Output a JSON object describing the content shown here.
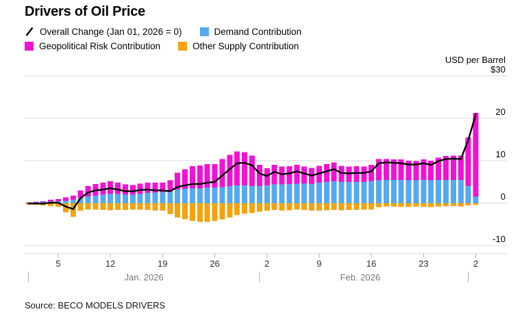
{
  "source": "Source: BECO MODELS DRIVERS",
  "legend": {
    "overall": "Overall Change (Jan 01, 2026 = 0)",
    "demand": "Demand Contribution",
    "geopolitical": "Geopolitical Risk Contribution",
    "other_supply": "Other Supply Contribution"
  },
  "colors": {
    "overall_line": "#000000",
    "demand": "#57A9EE",
    "geopolitical_risk": "#F112D2",
    "other_supply": "#F2A30F",
    "grid": "#D8D8D8",
    "tick": "#B0B0B0",
    "month_text": "#767676"
  },
  "chart_data": {
    "type": "bar",
    "subtype": "stacked-contribution-bars-with-overall-line",
    "title": "Drivers of Oil Price",
    "ylabel": "USD per Barrel",
    "ylim": [
      -12,
      30
    ],
    "grid": true,
    "legend_position": "top-left",
    "y_axis": {
      "unit": "USD per Barrel",
      "gridline_values": [
        30,
        20,
        10,
        0,
        -10
      ],
      "tick_labels": [
        "$30",
        "20",
        "10",
        "0",
        "-10"
      ]
    },
    "x_axis": {
      "week_ticks": [
        {
          "label": "5",
          "day_index": 4
        },
        {
          "label": "12",
          "day_index": 11
        },
        {
          "label": "19",
          "day_index": 18
        },
        {
          "label": "26",
          "day_index": 25
        },
        {
          "label": "2",
          "day_index": 32
        },
        {
          "label": "9",
          "day_index": 39
        },
        {
          "label": "16",
          "day_index": 46
        },
        {
          "label": "23",
          "day_index": 53
        },
        {
          "label": "2",
          "day_index": 60
        }
      ],
      "month_separator_indices": [
        0,
        31,
        59
      ],
      "month_labels": [
        {
          "label": "Jan. 2026",
          "center_index": 15.5
        },
        {
          "label": "Feb. 2026",
          "center_index": 44.5
        }
      ]
    },
    "dates": [
      "Jan 1",
      "Jan 2",
      "Jan 3",
      "Jan 4",
      "Jan 5",
      "Jan 6",
      "Jan 7",
      "Jan 8",
      "Jan 9",
      "Jan 10",
      "Jan 11",
      "Jan 12",
      "Jan 13",
      "Jan 14",
      "Jan 15",
      "Jan 16",
      "Jan 17",
      "Jan 18",
      "Jan 19",
      "Jan 20",
      "Jan 21",
      "Jan 22",
      "Jan 23",
      "Jan 24",
      "Jan 25",
      "Jan 26",
      "Jan 27",
      "Jan 28",
      "Jan 29",
      "Jan 30",
      "Jan 31",
      "Feb 1",
      "Feb 2",
      "Feb 3",
      "Feb 4",
      "Feb 5",
      "Feb 6",
      "Feb 7",
      "Feb 8",
      "Feb 9",
      "Feb 10",
      "Feb 11",
      "Feb 12",
      "Feb 13",
      "Feb 14",
      "Feb 15",
      "Feb 16",
      "Feb 17",
      "Feb 18",
      "Feb 19",
      "Feb 20",
      "Feb 21",
      "Feb 22",
      "Feb 23",
      "Feb 24",
      "Feb 25",
      "Feb 26",
      "Feb 27",
      "Feb 28",
      "Mar 1",
      "Mar 2"
    ],
    "series": [
      {
        "name": "Demand Contribution",
        "color": "#57A9EE",
        "values": [
          0.1,
          0.2,
          0.3,
          0.4,
          0.5,
          0.6,
          0.8,
          1.2,
          1.5,
          1.8,
          2.0,
          2.2,
          2.2,
          2.0,
          2.0,
          2.2,
          2.4,
          2.5,
          2.6,
          2.8,
          3.2,
          3.4,
          3.5,
          3.5,
          3.6,
          3.6,
          3.8,
          4.0,
          4.2,
          4.2,
          4.0,
          4.0,
          4.2,
          4.4,
          4.4,
          4.5,
          4.6,
          4.6,
          4.5,
          4.8,
          5.0,
          5.2,
          5.0,
          5.0,
          5.0,
          5.0,
          5.2,
          5.4,
          5.5,
          5.5,
          5.5,
          5.4,
          5.4,
          5.5,
          5.4,
          5.5,
          5.5,
          5.5,
          5.5,
          4.0,
          1.5
        ]
      },
      {
        "name": "Geopolitical Risk Contribution",
        "color": "#F112D2",
        "values": [
          0.1,
          0.1,
          0.2,
          0.4,
          0.5,
          0.8,
          1.0,
          1.8,
          2.5,
          2.7,
          2.8,
          3.0,
          2.6,
          2.4,
          2.3,
          2.4,
          2.4,
          2.3,
          2.2,
          2.6,
          4.0,
          4.6,
          5.2,
          5.4,
          5.6,
          5.6,
          6.6,
          7.4,
          8.0,
          7.8,
          7.2,
          5.0,
          4.0,
          4.6,
          4.2,
          4.2,
          4.4,
          4.0,
          3.8,
          4.0,
          4.2,
          4.4,
          3.8,
          3.6,
          3.7,
          3.6,
          3.8,
          5.0,
          4.9,
          4.8,
          4.8,
          4.6,
          4.5,
          4.8,
          4.6,
          5.2,
          5.6,
          5.7,
          5.7,
          11.5,
          19.8
        ]
      },
      {
        "name": "Other Supply Contribution",
        "color": "#F2A30F",
        "values": [
          -0.3,
          -0.4,
          -0.6,
          -0.7,
          -0.9,
          -2.2,
          -3.2,
          -1.8,
          -1.5,
          -1.5,
          -1.6,
          -1.7,
          -1.6,
          -1.6,
          -1.5,
          -1.5,
          -1.6,
          -1.8,
          -1.8,
          -2.6,
          -3.4,
          -3.8,
          -4.2,
          -4.4,
          -4.4,
          -4.2,
          -3.9,
          -3.4,
          -2.8,
          -2.5,
          -2.3,
          -2.0,
          -1.8,
          -1.6,
          -1.8,
          -1.7,
          -1.5,
          -1.6,
          -1.8,
          -1.8,
          -1.7,
          -1.6,
          -1.7,
          -1.6,
          -1.6,
          -1.5,
          -1.5,
          -1.0,
          -0.8,
          -0.8,
          -0.9,
          -0.9,
          -0.8,
          -0.9,
          -1.0,
          -0.8,
          -0.7,
          -0.7,
          -0.8,
          -0.6,
          -0.4
        ]
      }
    ],
    "line": {
      "name": "Overall Change (Jan 01, 2026 = 0)",
      "color": "#000000",
      "values": [
        -0.1,
        -0.1,
        -0.1,
        0.1,
        0.1,
        -0.8,
        -1.4,
        1.2,
        2.5,
        3.0,
        3.2,
        3.5,
        3.2,
        2.8,
        2.8,
        3.1,
        3.2,
        3.0,
        3.0,
        2.8,
        3.8,
        4.2,
        4.5,
        4.5,
        4.8,
        5.0,
        6.5,
        8.0,
        9.4,
        9.5,
        8.9,
        7.0,
        6.4,
        7.4,
        6.8,
        7.0,
        7.5,
        7.0,
        6.5,
        7.0,
        7.5,
        8.0,
        7.1,
        7.0,
        7.1,
        7.1,
        7.5,
        9.4,
        9.6,
        9.5,
        9.4,
        9.1,
        9.1,
        9.4,
        9.0,
        9.9,
        10.4,
        10.5,
        10.4,
        14.9,
        20.9
      ]
    }
  }
}
